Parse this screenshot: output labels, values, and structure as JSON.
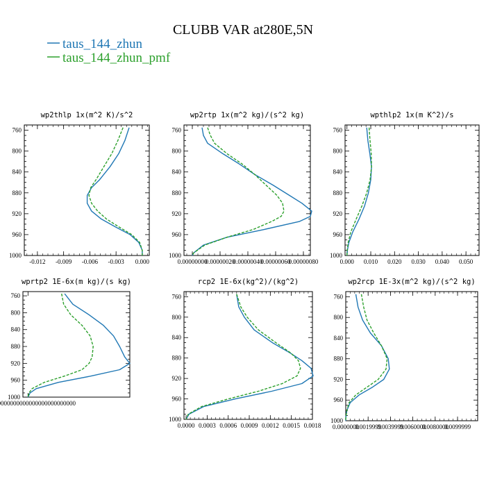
{
  "figure": {
    "title": "CLUBB VAR at280E,5N",
    "legend": [
      {
        "label": "taus_144_zhun",
        "color": "#1f77b4"
      },
      {
        "label": "taus_144_zhun_pmf",
        "color": "#2ca02c"
      }
    ]
  },
  "chart_data": [
    {
      "type": "line",
      "title": "wp2thlp  1x(m^2 K)/s^2",
      "xlim": [
        -0.0135,
        0.0008
      ],
      "ylim": [
        1000,
        750
      ],
      "x_ticks": [
        "-0.012",
        "-0.009",
        "-0.006",
        "-0.003",
        "0.000"
      ],
      "x_tick_values": [
        -0.012,
        -0.009,
        -0.006,
        -0.003,
        0.0
      ],
      "y_ticks": [
        "760",
        "800",
        "840",
        "880",
        "920",
        "960",
        "1000"
      ],
      "y": [
        755,
        780,
        805,
        830,
        855,
        870,
        885,
        900,
        915,
        930,
        945,
        960,
        975,
        990,
        1000
      ],
      "series": [
        {
          "name": "taus_144_zhun",
          "color": "#1f77b4",
          "dash": "",
          "values": [
            -0.0015,
            -0.002,
            -0.0027,
            -0.0037,
            -0.0049,
            -0.0058,
            -0.0063,
            -0.0063,
            -0.0058,
            -0.0047,
            -0.0031,
            -0.0014,
            -0.0004,
            0.0,
            0.0
          ]
        },
        {
          "name": "taus_144_zhun_pmf",
          "color": "#2ca02c",
          "dash": "4,2",
          "values": [
            -0.0022,
            -0.0028,
            -0.0035,
            -0.0044,
            -0.0053,
            -0.0059,
            -0.0061,
            -0.0058,
            -0.0051,
            -0.0041,
            -0.0027,
            -0.0012,
            -0.0003,
            0.0,
            0.0
          ]
        }
      ]
    },
    {
      "type": "line",
      "title": "wp2rtp  1x(m^2 kg)/(s^2 kg)",
      "xlim": [
        -6e-08,
        8.5e-07
      ],
      "ylim": [
        1000,
        750
      ],
      "x_ticks": [
        "0.00000000",
        "0.00000020",
        "0.00000040",
        "0.00000060",
        "0.00000080"
      ],
      "x_tick_values": [
        0.0,
        2e-07,
        4e-07,
        6e-07,
        8e-07
      ],
      "y_ticks": [
        "760",
        "800",
        "840",
        "880",
        "920",
        "960",
        "1000"
      ],
      "y": [
        755,
        770,
        785,
        805,
        825,
        845,
        865,
        885,
        900,
        915,
        925,
        935,
        950,
        965,
        980,
        995,
        1000
      ],
      "series": [
        {
          "name": "taus_144_zhun",
          "color": "#1f77b4",
          "dash": "",
          "values": [
            7e-08,
            8e-08,
            1.1e-07,
            2.2e-07,
            3.4e-07,
            4.5e-07,
            5.8e-07,
            7e-07,
            7.9e-07,
            8.6e-07,
            8.5e-07,
            7.7e-07,
            5.2e-07,
            2.5e-07,
            8e-08,
            1e-08,
            0.0
          ]
        },
        {
          "name": "taus_144_zhun_pmf",
          "color": "#2ca02c",
          "dash": "4,2",
          "values": [
            1.1e-07,
            1.3e-07,
            1.6e-07,
            2.5e-07,
            3.6e-07,
            4.5e-07,
            5.3e-07,
            6.1e-07,
            6.5e-07,
            6.6e-07,
            6.4e-07,
            5.7e-07,
            4.4e-07,
            2.5e-07,
            9e-08,
            1e-08,
            0.0
          ]
        }
      ]
    },
    {
      "type": "line",
      "title": "wpthlp2  1x(m K^2)/s",
      "xlim": [
        -0.0008,
        0.0555
      ],
      "ylim": [
        1000,
        750
      ],
      "x_ticks": [
        "0.000",
        "0.010",
        "0.020",
        "0.030",
        "0.040",
        "0.050"
      ],
      "x_tick_values": [
        0.0,
        0.01,
        0.02,
        0.03,
        0.04,
        0.05
      ],
      "y_ticks": [
        "760",
        "800",
        "840",
        "880",
        "920",
        "960",
        "1000"
      ],
      "y": [
        755,
        780,
        805,
        830,
        855,
        880,
        905,
        930,
        955,
        975,
        990,
        1000
      ],
      "series": [
        {
          "name": "taus_144_zhun",
          "color": "#1f77b4",
          "dash": "",
          "values": [
            0.0083,
            0.0088,
            0.0096,
            0.0103,
            0.01,
            0.009,
            0.0074,
            0.0051,
            0.0024,
            0.0008,
            0.0002,
            0.0
          ]
        },
        {
          "name": "taus_144_zhun_pmf",
          "color": "#2ca02c",
          "dash": "4,2",
          "values": [
            0.0093,
            0.0097,
            0.0102,
            0.0103,
            0.0097,
            0.0083,
            0.0063,
            0.0039,
            0.0016,
            0.0005,
            0.0001,
            0.0
          ]
        }
      ]
    },
    {
      "type": "line",
      "title": "wprtp2  1E-6x(m kg)/(s kg)",
      "xlim": [
        -0.05,
        1.0
      ],
      "ylim": [
        1000,
        750
      ],
      "x_ticks": [
        "0.00000000000000000000000000000"
      ],
      "x_tick_values": [
        0.0
      ],
      "y_ticks": [
        "760",
        "800",
        "840",
        "880",
        "920",
        "960",
        "1000"
      ],
      "y": [
        755,
        780,
        805,
        830,
        855,
        880,
        905,
        920,
        935,
        950,
        965,
        980,
        990,
        1000
      ],
      "series": [
        {
          "name": "taus_144_zhun",
          "color": "#1f77b4",
          "dash": "",
          "values": [
            0.36,
            0.44,
            0.6,
            0.74,
            0.84,
            0.9,
            0.95,
            1.0,
            0.9,
            0.62,
            0.3,
            0.08,
            0.02,
            0.0
          ]
        },
        {
          "name": "taus_144_zhun_pmf",
          "color": "#2ca02c",
          "dash": "4,2",
          "values": [
            0.33,
            0.35,
            0.42,
            0.53,
            0.61,
            0.64,
            0.63,
            0.6,
            0.53,
            0.36,
            0.16,
            0.04,
            0.01,
            0.0
          ]
        }
      ]
    },
    {
      "type": "line",
      "title": "rcp2  1E-6x(kg^2)/(kg^2)",
      "xlim": [
        -3e-05,
        0.0018
      ],
      "ylim": [
        1000,
        750
      ],
      "x_ticks": [
        "0.0000",
        "0.0003",
        "0.0006",
        "0.0009",
        "0.0012",
        "0.0015",
        "0.0018"
      ],
      "x_tick_values": [
        0.0,
        0.0003,
        0.0006,
        0.0009,
        0.0012,
        0.0015,
        0.0018
      ],
      "y_ticks": [
        "760",
        "800",
        "840",
        "880",
        "920",
        "960",
        "1000"
      ],
      "y": [
        755,
        780,
        800,
        825,
        850,
        870,
        885,
        900,
        915,
        930,
        945,
        960,
        975,
        990,
        1000
      ],
      "series": [
        {
          "name": "taus_144_zhun",
          "color": "#1f77b4",
          "dash": "",
          "values": [
            0.00072,
            0.00075,
            0.00083,
            0.00097,
            0.00123,
            0.00148,
            0.00165,
            0.00178,
            0.00181,
            0.00165,
            0.00122,
            0.0007,
            0.00025,
            4e-05,
            0.0
          ]
        },
        {
          "name": "taus_144_zhun_pmf",
          "color": "#2ca02c",
          "dash": "4,2",
          "values": [
            0.00072,
            0.00078,
            0.00087,
            0.00103,
            0.00128,
            0.00149,
            0.0016,
            0.00163,
            0.00158,
            0.00137,
            0.00103,
            0.0006,
            0.00022,
            3e-05,
            0.0
          ]
        }
      ]
    },
    {
      "type": "line",
      "title": "wp2rcp  1E-3x(m^2 kg)/(s^2 kg)",
      "xlim": [
        0.0,
        0.0118
      ],
      "ylim": [
        1000,
        750
      ],
      "x_ticks": [
        "0.0000000",
        "0.0019999",
        "0.0039999",
        "0.0060000",
        "0.0080000",
        "0.0099999"
      ],
      "x_tick_values": [
        0.0,
        0.0019999,
        0.0039999,
        0.006,
        0.008,
        0.0099999
      ],
      "y_ticks": [
        "760",
        "800",
        "840",
        "880",
        "920",
        "960",
        "1000"
      ],
      "y": [
        755,
        780,
        805,
        830,
        855,
        880,
        900,
        920,
        935,
        950,
        965,
        980,
        995,
        1000
      ],
      "series": [
        {
          "name": "taus_144_zhun",
          "color": "#1f77b4",
          "dash": "",
          "values": [
            0.0009,
            0.0011,
            0.0015,
            0.0022,
            0.0032,
            0.0038,
            0.0039,
            0.0034,
            0.0024,
            0.0012,
            0.0004,
            0.0001,
            0.0,
            0.0
          ]
        },
        {
          "name": "taus_144_zhun_pmf",
          "color": "#2ca02c",
          "dash": "4,2",
          "values": [
            0.0014,
            0.0016,
            0.0019,
            0.0025,
            0.0032,
            0.0037,
            0.0036,
            0.0029,
            0.0019,
            0.0009,
            0.0003,
            0.0001,
            0.0,
            0.0
          ]
        }
      ]
    }
  ]
}
